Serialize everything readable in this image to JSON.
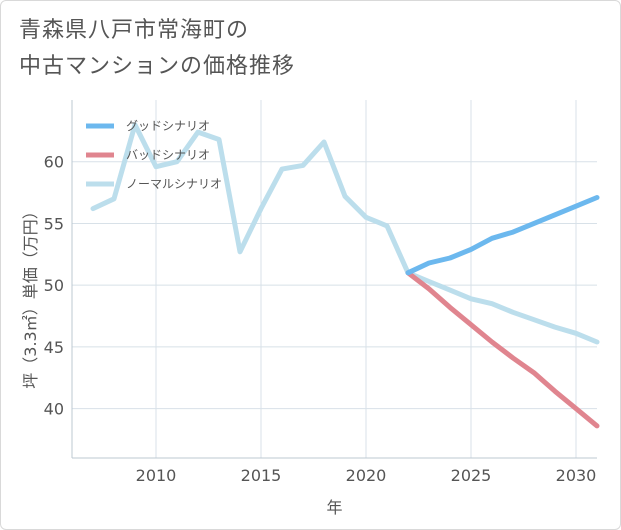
{
  "title": {
    "line1": "青森県八戸市常海町の",
    "line2": "中古マンションの価格推移"
  },
  "chart_data": {
    "type": "line",
    "xlabel": "年",
    "ylabel": "坪（3.3㎡）単価（万円）",
    "xlim": [
      2006,
      2031
    ],
    "ylim": [
      36,
      65
    ],
    "xticks": [
      2010,
      2015,
      2020,
      2025,
      2030
    ],
    "yticks": [
      40,
      45,
      50,
      55,
      60
    ],
    "grid": true,
    "legend_position": "top-left",
    "series": [
      {
        "name": "グッドシナリオ",
        "color": "#6cb8ee",
        "x": [
          2022,
          2023,
          2024,
          2025,
          2026,
          2027,
          2028,
          2029,
          2030,
          2031
        ],
        "y": [
          51.0,
          51.8,
          52.2,
          52.9,
          53.8,
          54.3,
          55.0,
          55.7,
          56.4,
          57.1
        ]
      },
      {
        "name": "バッドシナリオ",
        "color": "#e0858f",
        "x": [
          2022,
          2023,
          2024,
          2025,
          2026,
          2027,
          2028,
          2029,
          2030,
          2031
        ],
        "y": [
          51.0,
          49.7,
          48.2,
          46.8,
          45.4,
          44.1,
          42.9,
          41.4,
          40.0,
          38.6
        ]
      },
      {
        "name": "ノーマルシナリオ",
        "color": "#bcdeec",
        "x": [
          2007,
          2008,
          2009,
          2010,
          2011,
          2012,
          2013,
          2014,
          2015,
          2016,
          2017,
          2018,
          2019,
          2020,
          2021,
          2022,
          2023,
          2024,
          2025,
          2026,
          2027,
          2028,
          2029,
          2030,
          2031
        ],
        "y": [
          56.2,
          57.0,
          63.0,
          59.6,
          60.0,
          62.4,
          61.8,
          52.7,
          56.2,
          59.4,
          59.7,
          61.6,
          57.2,
          55.5,
          54.8,
          51.0,
          50.3,
          49.6,
          48.9,
          48.5,
          47.8,
          47.2,
          46.6,
          46.1,
          45.4
        ]
      }
    ]
  }
}
